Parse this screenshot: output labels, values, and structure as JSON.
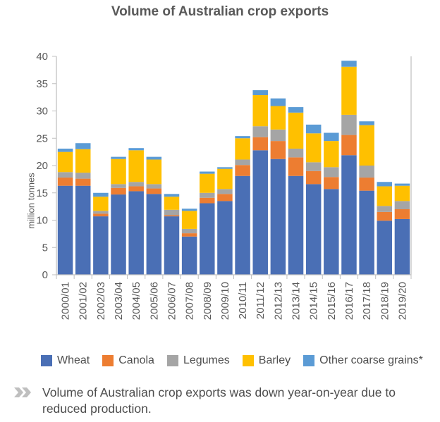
{
  "chart_data": {
    "type": "bar",
    "stacked": true,
    "title": "Volume of Australian crop exports",
    "ylabel": "million tonnes",
    "xlabel": "",
    "ylim": [
      0,
      40
    ],
    "yticks": [
      0,
      5,
      10,
      15,
      20,
      25,
      30,
      35,
      40
    ],
    "grid": false,
    "legend_position": "bottom",
    "categories": [
      "2000/01",
      "2001/02",
      "2002/03",
      "2003/04",
      "2004/05",
      "2005/06",
      "2006/07",
      "2007/08",
      "2008/09",
      "2009/10",
      "2010/11",
      "2011/12",
      "2012/13",
      "2013/14",
      "2014/15",
      "2015/16",
      "2016/17",
      "2017/18",
      "2018/19",
      "2019/20"
    ],
    "series": [
      {
        "name": "Wheat",
        "color": "#4a6fb5",
        "values": [
          16.3,
          16.3,
          10.7,
          14.7,
          15.3,
          14.8,
          10.7,
          7.0,
          13.1,
          13.5,
          18.1,
          22.8,
          21.2,
          18.1,
          16.6,
          15.7,
          21.9,
          15.4,
          9.9,
          10.2
        ]
      },
      {
        "name": "Canola",
        "color": "#ed7d31",
        "values": [
          1.5,
          1.3,
          0.5,
          1.2,
          0.9,
          1.0,
          0.2,
          0.6,
          1.0,
          1.3,
          2.0,
          2.4,
          3.3,
          3.4,
          2.4,
          2.2,
          3.7,
          2.4,
          1.6,
          1.8
        ]
      },
      {
        "name": "Legumes",
        "color": "#a5a5a5",
        "values": [
          1.0,
          1.1,
          0.5,
          0.7,
          0.8,
          0.8,
          1.0,
          0.8,
          0.9,
          0.9,
          1.0,
          2.0,
          2.1,
          1.6,
          1.6,
          1.8,
          3.7,
          2.2,
          1.1,
          1.5
        ]
      },
      {
        "name": "Barley",
        "color": "#ffc000",
        "values": [
          3.7,
          4.3,
          2.6,
          4.6,
          5.8,
          4.5,
          2.4,
          3.3,
          3.5,
          3.7,
          3.9,
          5.7,
          4.3,
          6.6,
          5.3,
          4.8,
          8.8,
          7.4,
          3.6,
          2.8
        ]
      },
      {
        "name": "Other coarse grains*",
        "color": "#5b9bd5",
        "values": [
          0.6,
          1.1,
          0.7,
          0.4,
          0.4,
          0.5,
          0.5,
          0.4,
          0.4,
          0.3,
          0.4,
          0.9,
          1.4,
          1.0,
          1.6,
          1.5,
          1.1,
          0.7,
          0.8,
          0.4
        ]
      }
    ]
  },
  "footnote": "Volume of Australian crop exports was down year-on-year due to reduced production."
}
